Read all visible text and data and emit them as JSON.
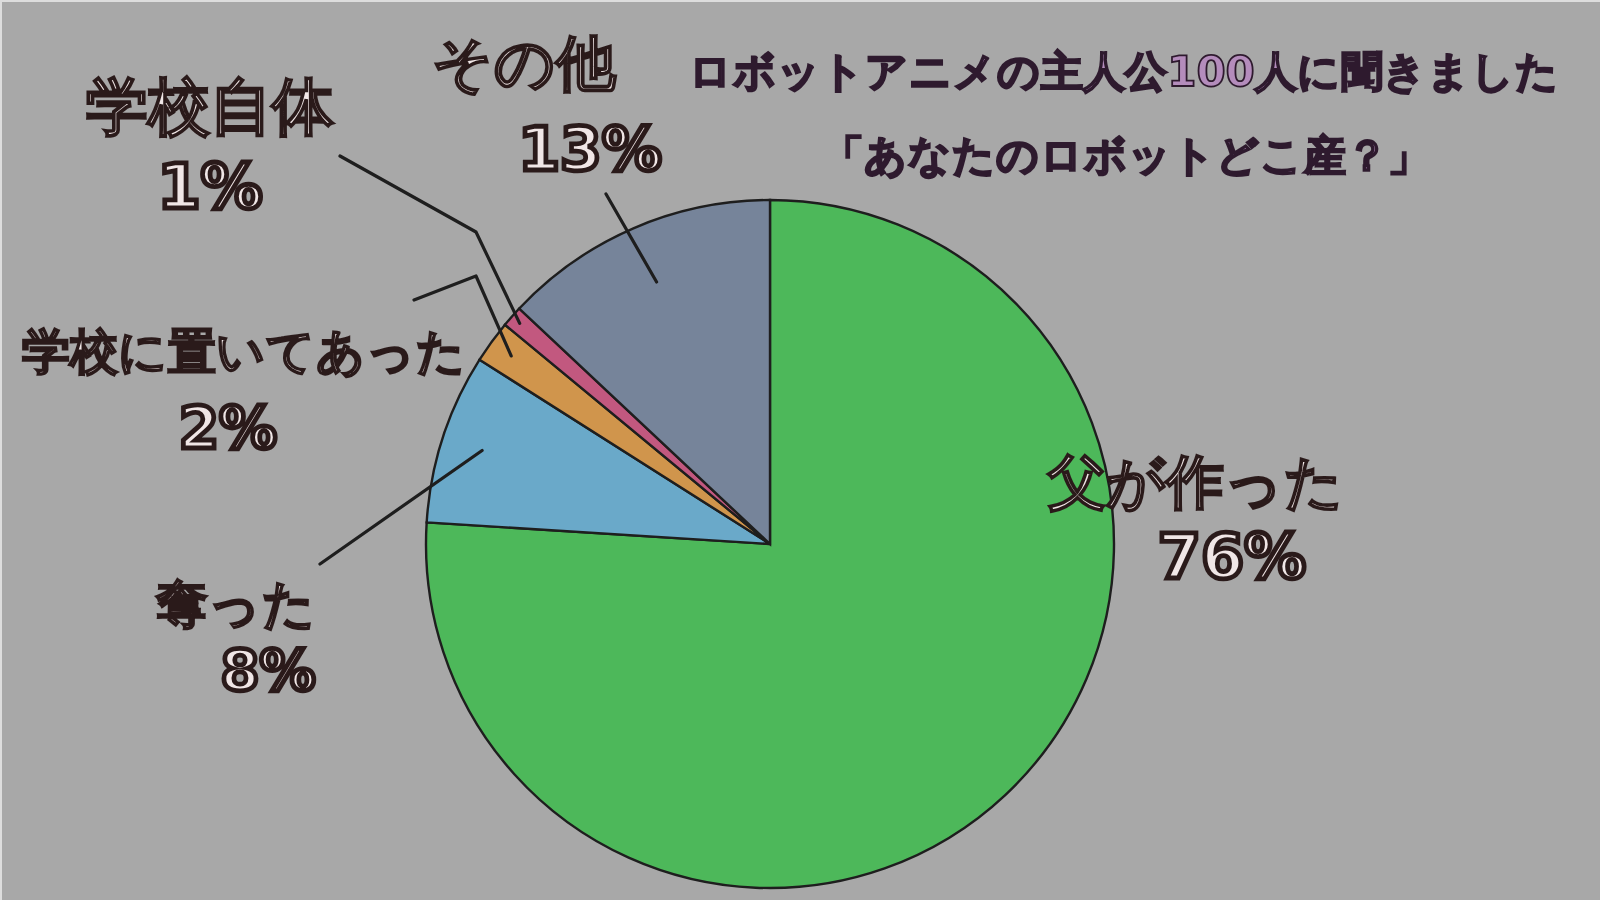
{
  "chart_data": {
    "type": "pie",
    "title": "ロボットアニメの主人公100人に聞きました",
    "subtitle": "「あなたのロボットどこ産？」",
    "categories": [
      "父が作った",
      "奪った",
      "学校に置いてあった",
      "学校自体",
      "その他"
    ],
    "values": [
      76,
      8,
      2,
      1,
      13
    ],
    "value_labels": [
      "76%",
      "8%",
      "2%",
      "1%",
      "13%"
    ],
    "colors": [
      "#4db85a",
      "#6aa9c9",
      "#d0954c",
      "#c2587f",
      "#76849a"
    ]
  }
}
